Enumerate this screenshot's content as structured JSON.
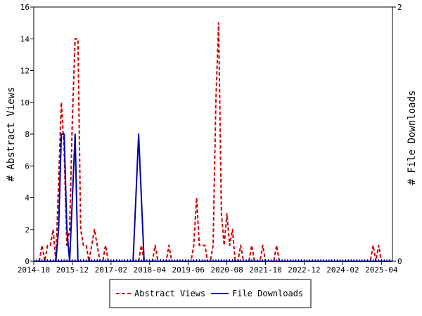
{
  "chart_data": {
    "type": "line",
    "title": "",
    "ylabel": "# Abstract Views",
    "y2label": "# File Downloads",
    "ylim": [
      0,
      16
    ],
    "y2lim": [
      0,
      2
    ],
    "yticks": [
      0,
      2,
      4,
      6,
      8,
      10,
      12,
      14,
      16
    ],
    "y2ticks": [
      0,
      2
    ],
    "xlim": [
      "2014-10",
      "2025-08"
    ],
    "xticks": [
      "2014-10",
      "2015-12",
      "2017-02",
      "2018-04",
      "2019-06",
      "2020-08",
      "2021-10",
      "2022-12",
      "2024-02",
      "2025-04"
    ],
    "legend_position": "bottom-center",
    "grid": false,
    "series": [
      {
        "name": "Abstract Views",
        "axis": "left",
        "color": "#cc0000",
        "style": "dashed",
        "points": [
          [
            "2014-12",
            0
          ],
          [
            "2015-01",
            1
          ],
          [
            "2015-02",
            0
          ],
          [
            "2015-03",
            1
          ],
          [
            "2015-04",
            1
          ],
          [
            "2015-05",
            2
          ],
          [
            "2015-06",
            0
          ],
          [
            "2015-07",
            5
          ],
          [
            "2015-08",
            10
          ],
          [
            "2015-09",
            7
          ],
          [
            "2015-10",
            1
          ],
          [
            "2015-11",
            2
          ],
          [
            "2015-12",
            9
          ],
          [
            "2016-01",
            14
          ],
          [
            "2016-02",
            14
          ],
          [
            "2016-03",
            2
          ],
          [
            "2016-04",
            1
          ],
          [
            "2016-05",
            1
          ],
          [
            "2016-06",
            0
          ],
          [
            "2016-07",
            1
          ],
          [
            "2016-08",
            2
          ],
          [
            "2016-09",
            1
          ],
          [
            "2016-10",
            0
          ],
          [
            "2016-11",
            0
          ],
          [
            "2016-12",
            1
          ],
          [
            "2017-01",
            0
          ],
          [
            "2017-02",
            0
          ],
          [
            "2017-12",
            0
          ],
          [
            "2018-01",
            1
          ],
          [
            "2018-02",
            0
          ],
          [
            "2018-05",
            0
          ],
          [
            "2018-06",
            1
          ],
          [
            "2018-07",
            0
          ],
          [
            "2018-10",
            0
          ],
          [
            "2018-11",
            1
          ],
          [
            "2018-12",
            0
          ],
          [
            "2019-07",
            0
          ],
          [
            "2019-08",
            1
          ],
          [
            "2019-09",
            4
          ],
          [
            "2019-10",
            1
          ],
          [
            "2019-11",
            1
          ],
          [
            "2019-12",
            1
          ],
          [
            "2020-01",
            0
          ],
          [
            "2020-02",
            0
          ],
          [
            "2020-03",
            1
          ],
          [
            "2020-04",
            10
          ],
          [
            "2020-05",
            15
          ],
          [
            "2020-06",
            3
          ],
          [
            "2020-07",
            1
          ],
          [
            "2020-08",
            3
          ],
          [
            "2020-09",
            1
          ],
          [
            "2020-10",
            2
          ],
          [
            "2020-11",
            0
          ],
          [
            "2020-12",
            0
          ],
          [
            "2021-01",
            1
          ],
          [
            "2021-02",
            0
          ],
          [
            "2021-04",
            0
          ],
          [
            "2021-05",
            1
          ],
          [
            "2021-06",
            0
          ],
          [
            "2021-08",
            0
          ],
          [
            "2021-09",
            1
          ],
          [
            "2021-10",
            0
          ],
          [
            "2022-01",
            0
          ],
          [
            "2022-02",
            1
          ],
          [
            "2022-03",
            0
          ],
          [
            "2024-12",
            0
          ],
          [
            "2025-01",
            1
          ],
          [
            "2025-02",
            0
          ],
          [
            "2025-03",
            1
          ],
          [
            "2025-04",
            0
          ]
        ]
      },
      {
        "name": "File Downloads",
        "axis": "right",
        "color": "#0000aa",
        "style": "solid",
        "points": [
          [
            "2015-06",
            0
          ],
          [
            "2015-07",
            0.25
          ],
          [
            "2015-08",
            1
          ],
          [
            "2015-09",
            1
          ],
          [
            "2015-10",
            0.25
          ],
          [
            "2015-11",
            0
          ],
          [
            "2015-12",
            0.5
          ],
          [
            "2016-01",
            1
          ],
          [
            "2016-02",
            0
          ],
          [
            "2017-10",
            0
          ],
          [
            "2017-11",
            0.5
          ],
          [
            "2017-12",
            1
          ],
          [
            "2018-01",
            0.5
          ],
          [
            "2018-02",
            0
          ]
        ]
      }
    ]
  }
}
